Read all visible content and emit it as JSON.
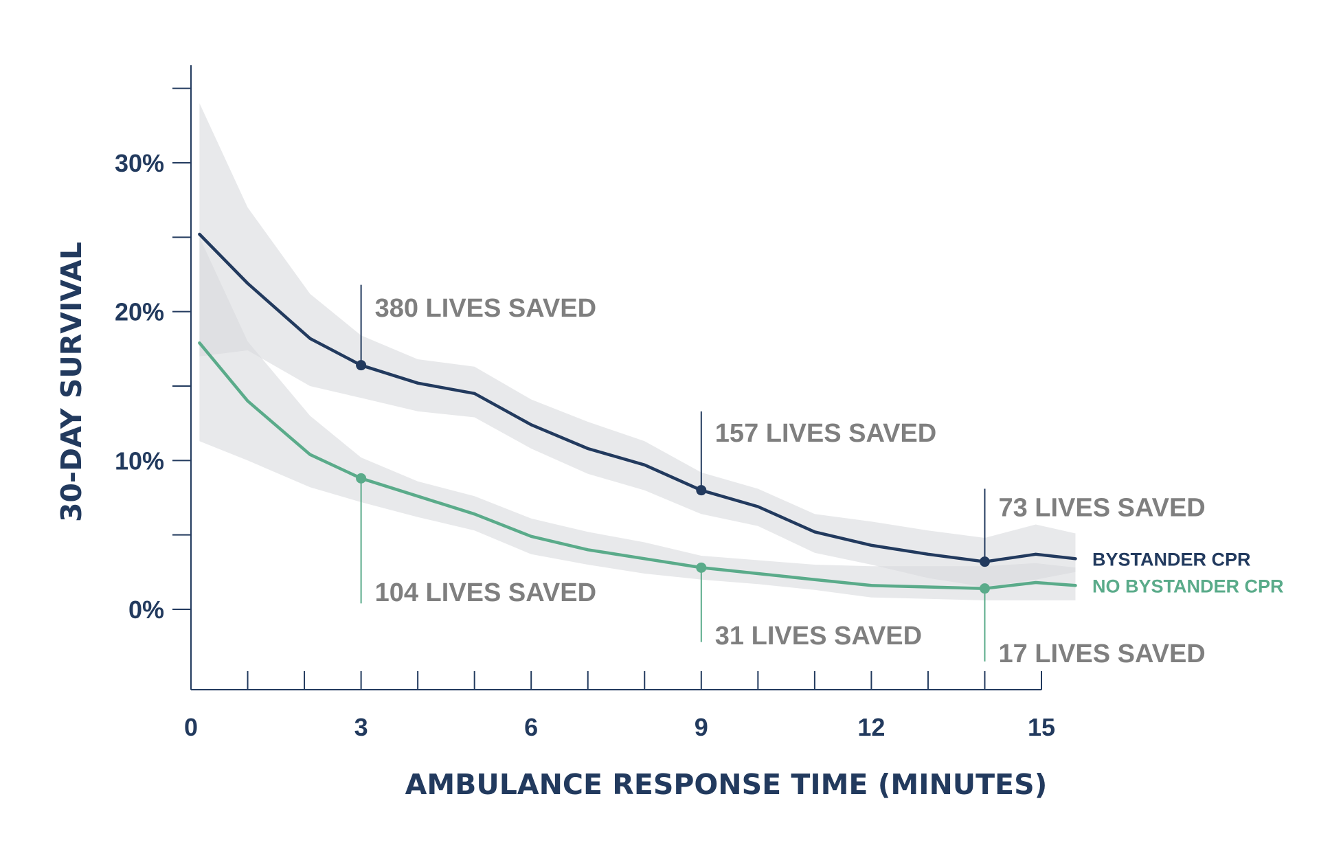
{
  "chart_data": {
    "type": "line",
    "xlabel": "AMBULANCE RESPONSE TIME (MINUTES)",
    "ylabel": "30-DAY SURVIVAL",
    "xlim": [
      0,
      15
    ],
    "ylim": [
      -5.5,
      36.5
    ],
    "x_ticks": [
      0,
      3,
      6,
      9,
      12,
      15
    ],
    "x_tick_labels": [
      "0",
      "3",
      "6",
      "9",
      "12",
      "15"
    ],
    "x_minor_ticks": [
      1,
      2,
      4,
      5,
      7,
      8,
      10,
      11,
      13,
      14
    ],
    "y_ticks": [
      0,
      10,
      20,
      30
    ],
    "y_tick_labels": [
      "0%",
      "10%",
      "20%",
      "30%"
    ],
    "y_minor_ticks": [
      5,
      15,
      25,
      35
    ],
    "colors": {
      "bystander": "#223a5e",
      "no_bystander": "#5aab8a",
      "band": "#d9dbdd",
      "annotation": "#7f7f7f",
      "axis": "#223a5e"
    },
    "series": [
      {
        "name": "BYSTANDER CPR",
        "key": "bystander",
        "x": [
          0.15,
          1,
          2.1,
          3,
          4,
          5,
          6,
          7,
          8,
          9,
          10,
          11,
          12,
          13,
          14,
          14.9,
          15.6
        ],
        "values": [
          25.2,
          21.9,
          18.2,
          16.4,
          15.2,
          14.5,
          12.4,
          10.8,
          9.7,
          8.0,
          6.9,
          5.2,
          4.3,
          3.7,
          3.2,
          3.7,
          3.4
        ],
        "band_upper": [
          34.0,
          27.0,
          21.2,
          18.4,
          16.8,
          16.3,
          14.1,
          12.6,
          11.3,
          9.2,
          8.1,
          6.4,
          5.9,
          5.3,
          4.8,
          5.7,
          5.1
        ],
        "band_lower": [
          17.0,
          17.4,
          15.0,
          14.2,
          13.3,
          12.9,
          10.8,
          9.1,
          8.0,
          6.4,
          5.6,
          3.8,
          3.0,
          2.1,
          1.5,
          2.0,
          2.5
        ]
      },
      {
        "name": "NO BYSTANDER CPR",
        "key": "no_bystander",
        "x": [
          0.15,
          1,
          2.1,
          3,
          4,
          5,
          6,
          7,
          8,
          9,
          10,
          11,
          12,
          13,
          14,
          14.9,
          15.6
        ],
        "values": [
          17.9,
          14.0,
          10.4,
          8.8,
          7.6,
          6.4,
          4.9,
          4.0,
          3.4,
          2.8,
          2.4,
          2.0,
          1.6,
          1.5,
          1.4,
          1.8,
          1.6
        ],
        "band_upper": [
          25.0,
          18.0,
          13.0,
          10.2,
          8.6,
          7.6,
          6.1,
          5.2,
          4.5,
          3.6,
          3.3,
          3.0,
          2.9,
          2.9,
          2.9,
          3.1,
          2.8
        ],
        "band_lower": [
          11.3,
          10.0,
          8.2,
          7.2,
          6.2,
          5.3,
          3.7,
          3.0,
          2.4,
          2.0,
          1.7,
          1.3,
          0.8,
          0.7,
          0.6,
          0.6,
          0.6
        ]
      }
    ],
    "markers": [
      {
        "series": "bystander",
        "x": 3,
        "y": 16.4
      },
      {
        "series": "bystander",
        "x": 9,
        "y": 8.0
      },
      {
        "series": "bystander",
        "x": 14,
        "y": 3.2
      },
      {
        "series": "no_bystander",
        "x": 3,
        "y": 8.8
      },
      {
        "series": "no_bystander",
        "x": 9,
        "y": 2.8
      },
      {
        "series": "no_bystander",
        "x": 14,
        "y": 1.4
      }
    ],
    "annotations": [
      {
        "text": "380 LIVES SAVED",
        "series": "bystander",
        "x": 3,
        "from_y": 16.4,
        "to_y": 21.8,
        "label_y": 20.3
      },
      {
        "text": "157 LIVES SAVED",
        "series": "bystander",
        "x": 9,
        "from_y": 8.0,
        "to_y": 13.3,
        "label_y": 11.9
      },
      {
        "text": "73 LIVES SAVED",
        "series": "bystander",
        "x": 14,
        "from_y": 3.2,
        "to_y": 8.1,
        "label_y": 6.9
      },
      {
        "text": "104 LIVES SAVED",
        "series": "no_bystander",
        "x": 3,
        "from_y": 8.8,
        "to_y": 0.4,
        "label_y": 1.2
      },
      {
        "text": "31 LIVES SAVED",
        "series": "no_bystander",
        "x": 9,
        "from_y": 2.8,
        "to_y": -2.2,
        "label_y": -1.7
      },
      {
        "text": "17 LIVES SAVED",
        "series": "no_bystander",
        "x": 14,
        "from_y": 1.4,
        "to_y": -3.5,
        "label_y": -2.9
      }
    ],
    "legend": [
      {
        "label": "BYSTANDER CPR",
        "series": "bystander"
      },
      {
        "label": "NO BYSTANDER CPR",
        "series": "no_bystander"
      }
    ],
    "legend_placement": "right, at end of lines"
  }
}
